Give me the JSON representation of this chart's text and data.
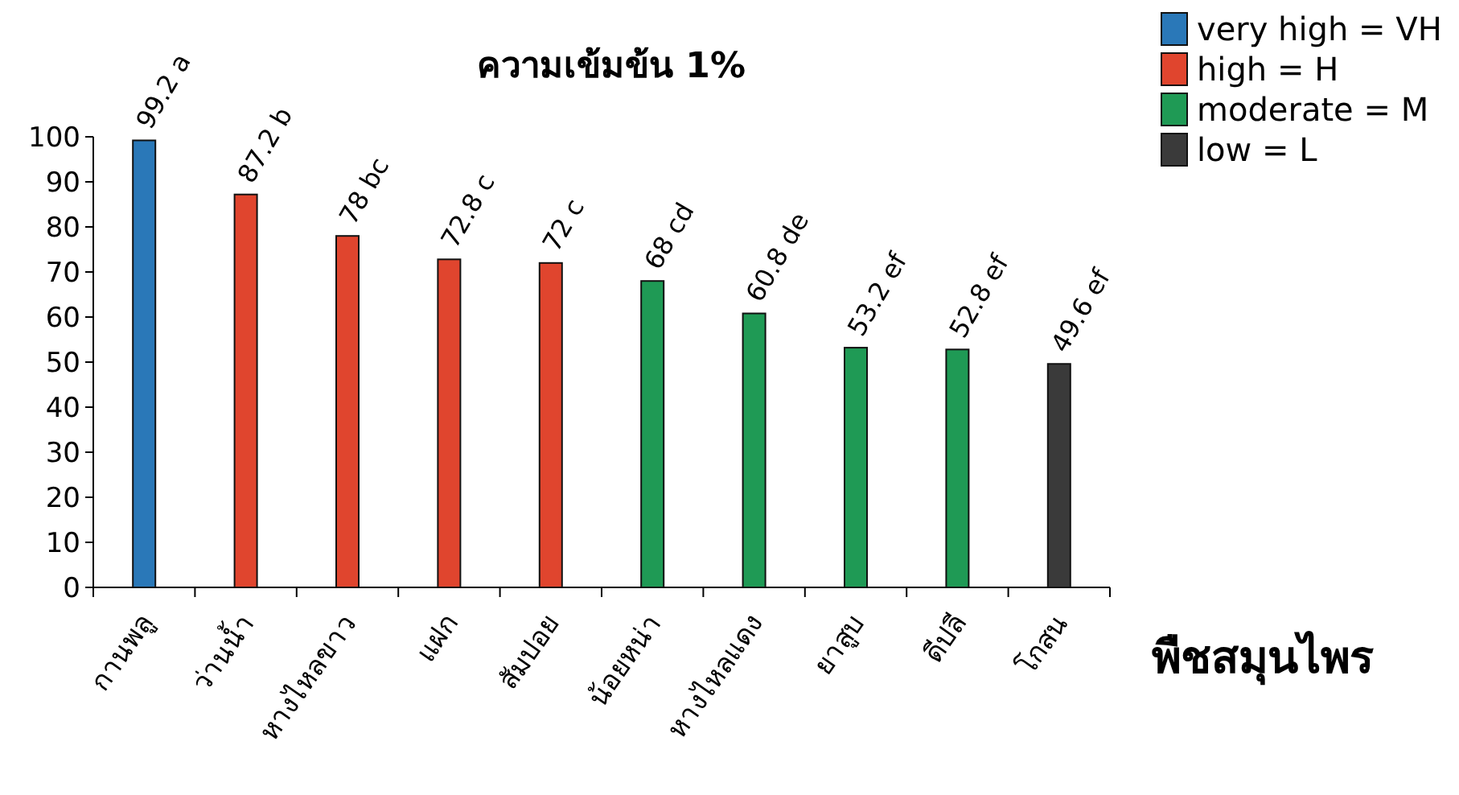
{
  "chart_data": {
    "type": "bar",
    "title": "ความเข้มข้น 1%",
    "xlabel": "พืชสมุนไพร",
    "categories": [
      "กานพลู",
      "ว่านน้ำ",
      "หางไหลขาว",
      "แฝก",
      "สัมปอย",
      "น้อยหน่า",
      "หางไหลแดง",
      "ยาสูบ",
      "ดีปลี",
      "โกสน"
    ],
    "series": [
      {
        "name": "very high = VH",
        "color": "#2a78b8",
        "values": [
          99.2,
          null,
          null,
          null,
          null,
          null,
          null,
          null,
          null,
          null
        ],
        "value_labels": [
          "99.2 a",
          null,
          null,
          null,
          null,
          null,
          null,
          null,
          null,
          null
        ]
      },
      {
        "name": "high = H",
        "color": "#e0452e",
        "values": [
          null,
          87.2,
          78,
          72.8,
          72,
          null,
          null,
          null,
          null,
          null
        ],
        "value_labels": [
          null,
          "87.2 b",
          "78 bc",
          "72.8 c",
          "72 c",
          null,
          null,
          null,
          null,
          null
        ]
      },
      {
        "name": "moderate = M",
        "color": "#1f9a55",
        "values": [
          null,
          null,
          null,
          null,
          null,
          68,
          60.8,
          53.2,
          52.8,
          null
        ],
        "value_labels": [
          null,
          null,
          null,
          null,
          null,
          "68 cd",
          "60.8 de",
          "53.2 ef",
          "52.8 ef",
          null
        ]
      },
      {
        "name": "low = L",
        "color": "#3a3a3a",
        "values": [
          null,
          null,
          null,
          null,
          null,
          null,
          null,
          null,
          null,
          49.6
        ],
        "value_labels": [
          null,
          null,
          null,
          null,
          null,
          null,
          null,
          null,
          null,
          "49.6 ef"
        ]
      }
    ],
    "ylim": [
      0,
      100
    ],
    "yticks": [
      0,
      10,
      20,
      30,
      40,
      50,
      60,
      70,
      80,
      90,
      100
    ],
    "legend": "top right"
  }
}
